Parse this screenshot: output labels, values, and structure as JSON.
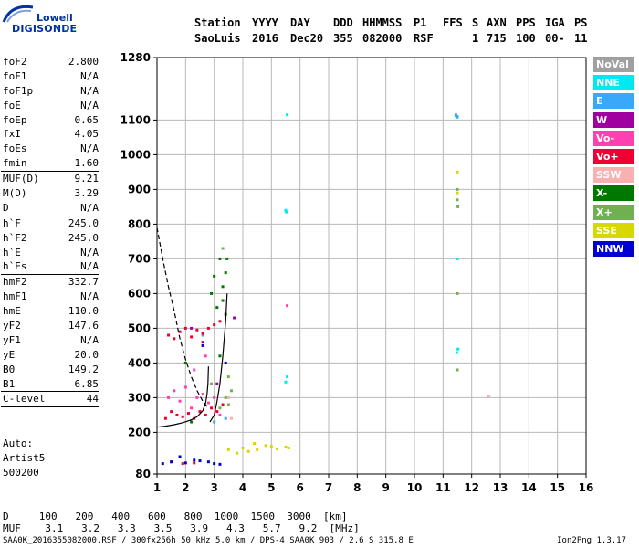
{
  "logo": {
    "line1": "Lowell",
    "line2": "DIGISONDE"
  },
  "header": {
    "labels": [
      "Station",
      "YYYY",
      "DAY",
      "DDD",
      "HHMMSS",
      "P1",
      "FFS",
      "S",
      "AXN",
      "PPS",
      "IGA",
      "PS"
    ],
    "values": [
      "SaoLuis",
      "2016",
      "Dec20",
      "355",
      "082000",
      "RSF",
      "",
      "1",
      "715",
      "100",
      "00-",
      "11"
    ]
  },
  "params": [
    {
      "group": [
        {
          "name": "foF2",
          "value": "2.800"
        },
        {
          "name": "foF1",
          "value": "N/A"
        },
        {
          "name": "foF1p",
          "value": "N/A"
        },
        {
          "name": "foE",
          "value": "N/A"
        },
        {
          "name": "foEp",
          "value": "0.65"
        },
        {
          "name": "fxI",
          "value": "4.05"
        },
        {
          "name": "foEs",
          "value": "N/A"
        },
        {
          "name": "fmin",
          "value": "1.60"
        }
      ]
    },
    {
      "group": [
        {
          "name": "MUF(D)",
          "value": "9.21"
        },
        {
          "name": "M(D)",
          "value": "3.29"
        },
        {
          "name": "D",
          "value": "N/A"
        }
      ]
    },
    {
      "group": [
        {
          "name": "h`F",
          "value": "245.0"
        },
        {
          "name": "h`F2",
          "value": "245.0"
        },
        {
          "name": "h`E",
          "value": "N/A"
        },
        {
          "name": "h`Es",
          "value": "N/A"
        }
      ]
    },
    {
      "group": [
        {
          "name": "hmF2",
          "value": "332.7"
        },
        {
          "name": "hmF1",
          "value": "N/A"
        },
        {
          "name": "hmE",
          "value": "110.0"
        },
        {
          "name": "yF2",
          "value": "147.6"
        },
        {
          "name": "yF1",
          "value": "N/A"
        },
        {
          "name": "yE",
          "value": "20.0"
        },
        {
          "name": "B0",
          "value": "149.2"
        },
        {
          "name": "B1",
          "value": "6.85"
        }
      ]
    },
    {
      "group": [
        {
          "name": "C-level",
          "value": "44"
        }
      ]
    }
  ],
  "auto": {
    "line1": "Auto:",
    "line2": "Artist5",
    "line3": "500200"
  },
  "legend": [
    {
      "label": "NoVal",
      "color": "#a0a0a0"
    },
    {
      "label": "NNE",
      "color": "#00e8f0"
    },
    {
      "label": "E",
      "color": "#3aa8f8"
    },
    {
      "label": "W",
      "color": "#a000a0"
    },
    {
      "label": "Vo-",
      "color": "#ff40b0"
    },
    {
      "label": "Vo+",
      "color": "#f00030"
    },
    {
      "label": "SSW",
      "color": "#f8b0b0"
    },
    {
      "label": "X-",
      "color": "#007800"
    },
    {
      "label": "X+",
      "color": "#70b050"
    },
    {
      "label": "SSE",
      "color": "#d8d800"
    },
    {
      "label": "NNW",
      "color": "#0000d0"
    }
  ],
  "dmuf": {
    "d_line": "D     100   200   400   600   800  1000  1500  3000  [km]",
    "muf_line": "MUF    3.1   3.2   3.3   3.5   3.9   4.3   5.7   9.2  [MHz]"
  },
  "footer": {
    "left": "SAA0K_2016355082000.RSF / 300fx256h 50 kHz 5.0 km / DPS-4 SAA0K 903 / 2.6 S 315.8 E",
    "right": "Ion2Png 1.3.17"
  },
  "chart_data": {
    "type": "scatter",
    "title": "",
    "xlabel": "",
    "ylabel": "",
    "xlim": [
      1,
      16
    ],
    "ylim": [
      80,
      1280
    ],
    "x_ticks": [
      1,
      2,
      3,
      4,
      5,
      6,
      7,
      8,
      9,
      10,
      11,
      12,
      13,
      14,
      15,
      16
    ],
    "y_ticks": [
      80,
      200,
      300,
      400,
      500,
      600,
      700,
      800,
      900,
      1000,
      1100,
      1280
    ],
    "grid": true,
    "series": [
      {
        "name": "NNE",
        "points": [
          [
            5.55,
            1115
          ],
          [
            5.5,
            840
          ],
          [
            5.52,
            835
          ],
          [
            5.55,
            360
          ],
          [
            5.5,
            345
          ],
          [
            11.45,
            1112
          ],
          [
            11.5,
            1108
          ],
          [
            11.5,
            700
          ],
          [
            11.52,
            440
          ],
          [
            11.48,
            430
          ]
        ]
      },
      {
        "name": "E",
        "points": [
          [
            11.45,
            1115
          ],
          [
            11.5,
            1110
          ],
          [
            3.4,
            240
          ],
          [
            3.0,
            230
          ],
          [
            2.6,
            480
          ]
        ]
      },
      {
        "name": "W",
        "points": [
          [
            2.2,
            500
          ],
          [
            2.6,
            460
          ],
          [
            3.1,
            340
          ],
          [
            3.7,
            530
          ]
        ]
      },
      {
        "name": "Vo-",
        "points": [
          [
            5.55,
            565
          ],
          [
            1.4,
            300
          ],
          [
            1.6,
            320
          ],
          [
            1.8,
            290
          ],
          [
            2.0,
            330
          ],
          [
            2.2,
            270
          ],
          [
            2.4,
            300
          ],
          [
            2.6,
            310
          ],
          [
            2.8,
            285
          ],
          [
            3.0,
            300
          ],
          [
            3.2,
            250
          ],
          [
            2.3,
            380
          ],
          [
            2.7,
            420
          ]
        ]
      },
      {
        "name": "Vo+",
        "points": [
          [
            1.3,
            240
          ],
          [
            1.5,
            260
          ],
          [
            1.7,
            250
          ],
          [
            1.9,
            245
          ],
          [
            2.1,
            255
          ],
          [
            2.3,
            240
          ],
          [
            2.5,
            260
          ],
          [
            2.7,
            250
          ],
          [
            2.9,
            270
          ],
          [
            3.1,
            260
          ],
          [
            3.3,
            280
          ],
          [
            1.4,
            480
          ],
          [
            1.6,
            470
          ],
          [
            1.8,
            490
          ],
          [
            2.0,
            500
          ],
          [
            2.2,
            475
          ],
          [
            2.4,
            495
          ],
          [
            2.6,
            485
          ],
          [
            2.8,
            500
          ],
          [
            3.0,
            510
          ],
          [
            3.2,
            520
          ],
          [
            1.5,
            115
          ],
          [
            1.9,
            110
          ],
          [
            2.3,
            112
          ]
        ]
      },
      {
        "name": "SSW",
        "points": [
          [
            12.6,
            305
          ],
          [
            3.6,
            240
          ],
          [
            3.5,
            300
          ]
        ]
      },
      {
        "name": "X-",
        "points": [
          [
            2.2,
            230
          ],
          [
            2.9,
            600
          ],
          [
            3.0,
            650
          ],
          [
            3.1,
            560
          ],
          [
            3.2,
            700
          ],
          [
            3.3,
            620
          ],
          [
            3.4,
            540
          ],
          [
            2.0,
            400
          ],
          [
            3.4,
            660
          ],
          [
            3.45,
            700
          ],
          [
            3.3,
            580
          ],
          [
            3.2,
            420
          ]
        ]
      },
      {
        "name": "X+",
        "points": [
          [
            3.2,
            270
          ],
          [
            3.4,
            300
          ],
          [
            3.6,
            320
          ],
          [
            2.9,
            340
          ],
          [
            3.5,
            280
          ],
          [
            11.5,
            900
          ],
          [
            11.5,
            870
          ],
          [
            11.52,
            850
          ],
          [
            11.5,
            600
          ],
          [
            11.5,
            380
          ],
          [
            3.3,
            730
          ],
          [
            3.5,
            360
          ]
        ]
      },
      {
        "name": "SSE",
        "points": [
          [
            3.5,
            150
          ],
          [
            4.0,
            155
          ],
          [
            4.5,
            150
          ],
          [
            5.0,
            160
          ],
          [
            5.5,
            158
          ],
          [
            4.2,
            145
          ],
          [
            4.8,
            162
          ],
          [
            5.2,
            152
          ],
          [
            3.8,
            140
          ],
          [
            4.4,
            168
          ],
          [
            5.6,
            155
          ],
          [
            11.5,
            950
          ],
          [
            11.5,
            890
          ]
        ]
      },
      {
        "name": "NNW",
        "points": [
          [
            1.2,
            110
          ],
          [
            1.5,
            115
          ],
          [
            2.0,
            112
          ],
          [
            2.5,
            118
          ],
          [
            3.0,
            110
          ],
          [
            1.8,
            130
          ],
          [
            2.3,
            120
          ],
          [
            2.8,
            115
          ],
          [
            3.2,
            108
          ],
          [
            2.6,
            450
          ],
          [
            3.4,
            400
          ]
        ]
      }
    ],
    "traces": [
      {
        "name": "virtual height trace",
        "style": "solid",
        "points": [
          [
            1.0,
            215
          ],
          [
            1.3,
            218
          ],
          [
            1.6,
            222
          ],
          [
            1.9,
            228
          ],
          [
            2.2,
            236
          ],
          [
            2.4,
            245
          ],
          [
            2.6,
            262
          ],
          [
            2.7,
            285
          ],
          [
            2.75,
            310
          ],
          [
            2.78,
            340
          ],
          [
            2.8,
            390
          ]
        ]
      },
      {
        "name": "secondary trace",
        "style": "solid",
        "points": [
          [
            2.85,
            230
          ],
          [
            3.0,
            250
          ],
          [
            3.1,
            290
          ],
          [
            3.2,
            340
          ],
          [
            3.3,
            420
          ],
          [
            3.4,
            520
          ],
          [
            3.45,
            600
          ]
        ]
      },
      {
        "name": "profile",
        "style": "dashed",
        "points": [
          [
            1.0,
            790
          ],
          [
            1.2,
            700
          ],
          [
            1.4,
            620
          ],
          [
            1.6,
            550
          ],
          [
            1.8,
            470
          ],
          [
            2.0,
            410
          ],
          [
            2.2,
            360
          ],
          [
            2.4,
            320
          ],
          [
            2.6,
            290
          ],
          [
            2.8,
            270
          ]
        ]
      }
    ]
  }
}
